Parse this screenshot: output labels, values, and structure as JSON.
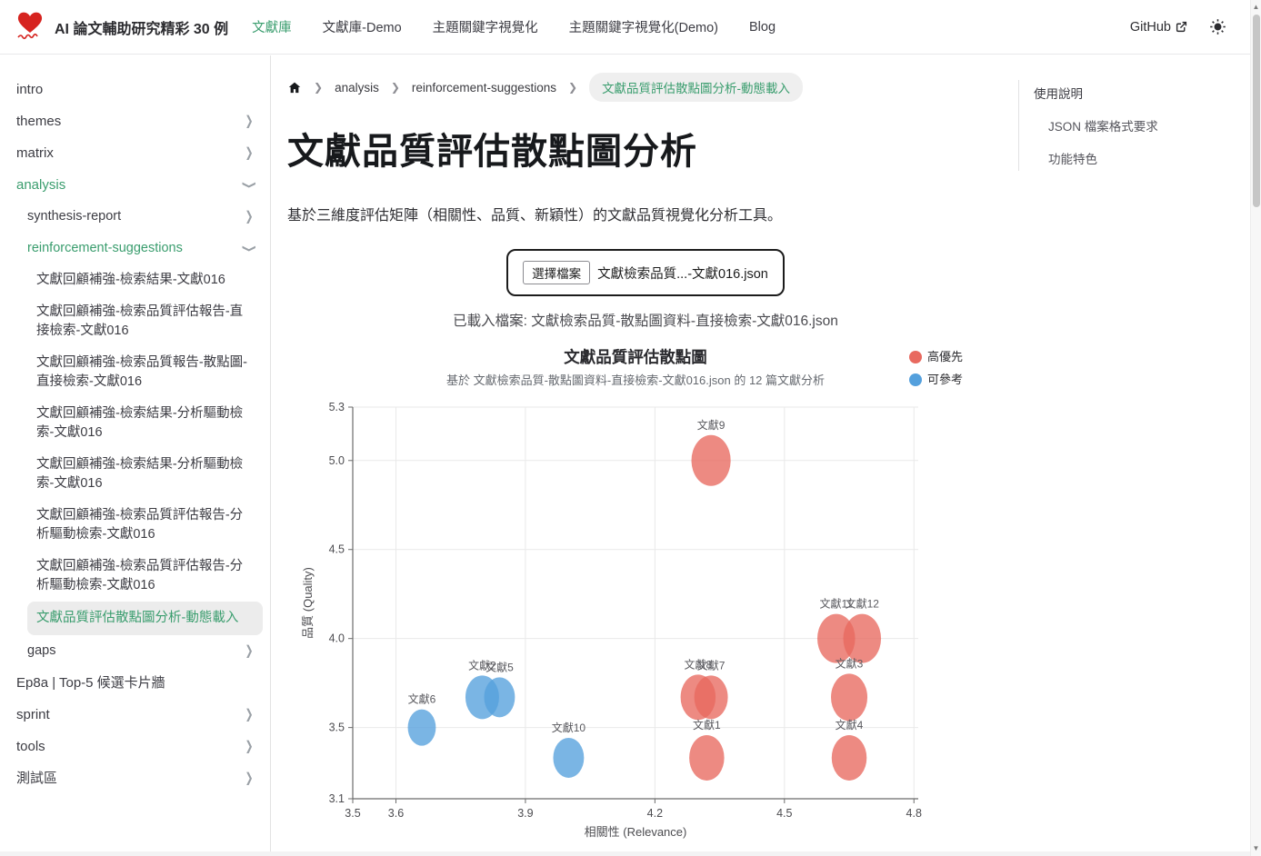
{
  "theme": {
    "accent": "#3a9d6e",
    "high_priority_color": "#e8695f",
    "reference_color": "#54a0dd",
    "logo_color": "#d6231f"
  },
  "nav": {
    "title": "AI 論文輔助研究精彩 30 例",
    "items": [
      {
        "label": "文獻庫",
        "active": true
      },
      {
        "label": "文獻庫-Demo",
        "active": false
      },
      {
        "label": "主題關鍵字視覺化",
        "active": false
      },
      {
        "label": "主題關鍵字視覺化(Demo)",
        "active": false
      },
      {
        "label": "Blog",
        "active": false
      }
    ],
    "github_label": "GitHub"
  },
  "sidebar": {
    "items": [
      {
        "label": "intro",
        "level": 1
      },
      {
        "label": "themes",
        "level": 1,
        "chevron": "right"
      },
      {
        "label": "matrix",
        "level": 1,
        "chevron": "right"
      },
      {
        "label": "analysis",
        "level": 1,
        "chevron": "down",
        "highlight": true
      },
      {
        "label": "synthesis-report",
        "level": 2,
        "chevron": "right"
      },
      {
        "label": "reinforcement-suggestions",
        "level": 2,
        "chevron": "down",
        "highlight": true
      },
      {
        "label": "文獻回顧補強-檢索結果-文獻016",
        "level": 3
      },
      {
        "label": "文獻回顧補強-檢索品質評估報告-直接檢索-文獻016",
        "level": 3
      },
      {
        "label": "文獻回顧補強-檢索品質報告-散點圖-直接檢索-文獻016",
        "level": 3
      },
      {
        "label": "文獻回顧補強-檢索結果-分析驅動檢索-文獻016",
        "level": 3
      },
      {
        "label": "文獻回顧補強-檢索結果-分析驅動檢索-文獻016",
        "level": 3
      },
      {
        "label": "文獻回顧補強-檢索品質評估報告-分析驅動檢索-文獻016",
        "level": 3
      },
      {
        "label": "文獻回顧補強-檢索品質評估報告-分析驅動檢索-文獻016",
        "level": 3
      },
      {
        "label": "文獻品質評估散點圖分析-動態載入",
        "level": 3,
        "current": true
      },
      {
        "label": "gaps",
        "level": 2,
        "chevron": "right"
      },
      {
        "label": "Ep8a | Top-5 候選卡片牆",
        "level": 1
      },
      {
        "label": "sprint",
        "level": 1,
        "chevron": "right"
      },
      {
        "label": "tools",
        "level": 1,
        "chevron": "right"
      },
      {
        "label": "測試區",
        "level": 1,
        "chevron": "right"
      }
    ]
  },
  "breadcrumb": {
    "items": [
      "analysis",
      "reinforcement-suggestions"
    ],
    "current": "文獻品質評估散點圖分析-動態載入"
  },
  "page": {
    "title": "文獻品質評估散點圖分析",
    "description": "基於三維度評估矩陣（相關性、品質、新穎性）的文獻品質視覺化分析工具。"
  },
  "upload": {
    "button_label": "選擇檔案",
    "filename": "文獻檢索品質...-文獻016.json",
    "status": "已載入檔案: 文獻檢索品質-散點圖資料-直接檢索-文獻016.json"
  },
  "toc": {
    "title": "使用說明",
    "items": [
      "JSON 檔案格式要求",
      "功能特色"
    ]
  },
  "chart_data": {
    "type": "scatter",
    "title": "文獻品質評估散點圖",
    "subtitle": "基於 文獻檢索品質-散點圖資料-直接檢索-文獻016.json 的 12 篇文獻分析",
    "xlabel": "相關性 (Relevance)",
    "ylabel": "品質 (Quality)",
    "xlim": [
      3.5,
      4.81
    ],
    "ylim": [
      3.1,
      5.3
    ],
    "x_ticks": [
      3.5,
      3.6,
      3.9,
      4.2,
      4.5,
      4.8
    ],
    "y_ticks": [
      3.1,
      3.5,
      4.0,
      4.5,
      5.0,
      5.3
    ],
    "grid": true,
    "legend_position": "top-right",
    "legend": [
      {
        "label": "高優先",
        "color": "#e8695f"
      },
      {
        "label": "可參考",
        "color": "#54a0dd"
      }
    ],
    "series": [
      {
        "name": "高優先",
        "color": "#e8695f",
        "points": [
          {
            "label": "文獻9",
            "x": 4.33,
            "y": 5.0,
            "r": 28
          },
          {
            "label": "文獻11",
            "x": 4.62,
            "y": 4.0,
            "r": 27
          },
          {
            "label": "文獻12",
            "x": 4.68,
            "y": 4.0,
            "r": 27
          },
          {
            "label": "文獻3",
            "x": 4.65,
            "y": 3.67,
            "r": 26
          },
          {
            "label": "文獻4",
            "x": 4.65,
            "y": 3.33,
            "r": 25
          },
          {
            "label": "文獻8",
            "x": 4.3,
            "y": 3.67,
            "r": 25
          },
          {
            "label": "文獻7",
            "x": 4.33,
            "y": 3.67,
            "r": 24
          },
          {
            "label": "文獻1",
            "x": 4.32,
            "y": 3.33,
            "r": 25
          }
        ]
      },
      {
        "name": "可參考",
        "color": "#54a0dd",
        "points": [
          {
            "label": "文獻2",
            "x": 3.8,
            "y": 3.67,
            "r": 24
          },
          {
            "label": "文獻5",
            "x": 3.84,
            "y": 3.67,
            "r": 22
          },
          {
            "label": "文獻6",
            "x": 3.66,
            "y": 3.5,
            "r": 20
          },
          {
            "label": "文獻10",
            "x": 4.0,
            "y": 3.33,
            "r": 22
          }
        ]
      }
    ]
  }
}
